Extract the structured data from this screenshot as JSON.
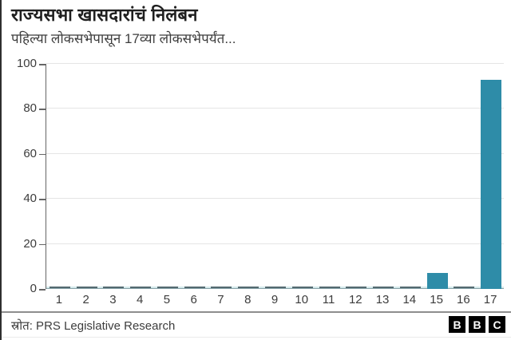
{
  "chart_data": {
    "type": "bar",
    "title": "राज्यसभा खासदारांचं निलंबन",
    "subtitle": "पहिल्या लोकसभेपासून 17व्या लोकसभेपर्यंत...",
    "categories": [
      "1",
      "2",
      "3",
      "4",
      "5",
      "6",
      "7",
      "8",
      "9",
      "10",
      "11",
      "12",
      "13",
      "14",
      "15",
      "16",
      "17"
    ],
    "values": [
      0,
      0,
      0,
      0,
      0,
      0,
      0,
      0,
      0,
      0,
      0,
      0,
      0,
      0,
      7,
      0,
      93
    ],
    "xlabel": "",
    "ylabel": "",
    "ylim": [
      0,
      100
    ],
    "yticks": [
      0,
      20,
      40,
      60,
      80,
      100
    ],
    "grid": true,
    "legend": "none",
    "bar_color": "#2e8ca8",
    "zero_marker_color": "#546a70",
    "baseline_light_color": "#d5eaec",
    "baseline_zero_color": "#86a2a8"
  },
  "footer": {
    "source": "स्रोत: PRS Legislative Research",
    "logo_letters": [
      "B",
      "B",
      "C"
    ],
    "logo_bg": "#000000",
    "logo_fg": "#ffffff"
  }
}
